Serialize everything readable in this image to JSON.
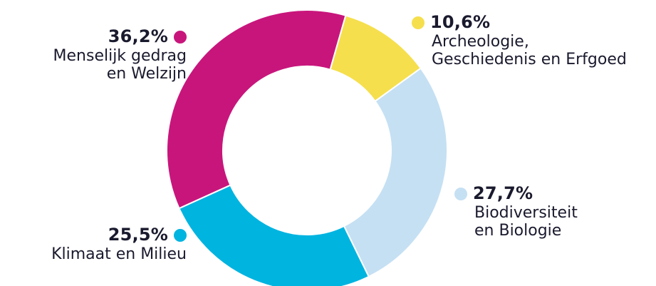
{
  "chart_data": {
    "type": "pie",
    "donut": true,
    "title": "",
    "slices": [
      {
        "pct_label": "10,6%",
        "value": 10.6,
        "label_lines": [
          "Archeologie,",
          "Geschiedenis en Erfgoed"
        ],
        "color": "#f5df4d"
      },
      {
        "pct_label": "27,7%",
        "value": 27.7,
        "label_lines": [
          "Biodiversiteit",
          "en Biologie"
        ],
        "color": "#c5e0f3"
      },
      {
        "pct_label": "25,5%",
        "value": 25.5,
        "label_lines": [
          "Klimaat en Milieu"
        ],
        "color": "#00b4e0"
      },
      {
        "pct_label": "36,2%",
        "value": 36.2,
        "label_lines": [
          "Menselijk gedrag",
          "en Welzijn"
        ],
        "color": "#c8157c"
      }
    ]
  }
}
